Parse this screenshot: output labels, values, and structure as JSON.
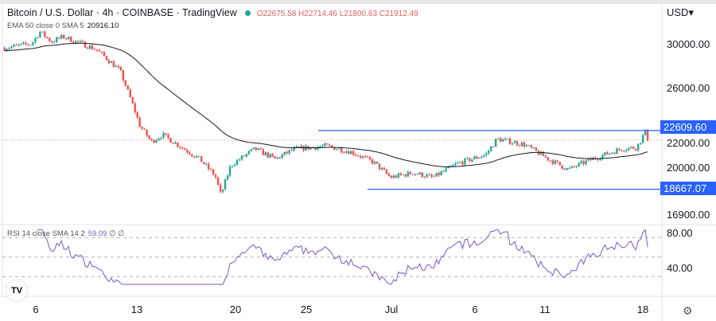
{
  "header": {
    "symbol": "Bitcoin / U.S. Dollar · 4h · COINBASE · TradingView",
    "ohlc": "O22675.58 H22714.46 L21800.63 C21912.49"
  },
  "indicators": {
    "ema_label": "EMA 50 close 0 SMA 5",
    "ema_value": "20916.10",
    "rsi_label": "RSI 14 close SMA 14 2",
    "rsi_value": "59.09",
    "rsi_extra": "∅ ∅"
  },
  "axis": {
    "currency": "USD",
    "price_labels": [
      "30000.00",
      "26000.00",
      "22000.00",
      "20000.00",
      "16900.00"
    ],
    "rsi_labels": [
      "80.00",
      "40.00"
    ],
    "time_labels": [
      "6",
      "13",
      "20",
      "25",
      "Jul",
      "6",
      "11",
      "18"
    ]
  },
  "levels": {
    "resistance": "22609.60",
    "support": "18667.07"
  },
  "colors": {
    "up": "#26a69a",
    "down": "#ef5350",
    "level": "#2962ff",
    "ema": "#131722",
    "rsi": "#7e57c2"
  },
  "chart_data": {
    "type": "candlestick",
    "timeframe": "4h",
    "waypoints_day_price": [
      [
        -2.2,
        29600
      ],
      [
        -0.3,
        30000
      ],
      [
        0.3,
        31200
      ],
      [
        1.1,
        30200
      ],
      [
        1.9,
        30700
      ],
      [
        4.2,
        29500
      ],
      [
        5.9,
        27500
      ],
      [
        7.3,
        23000
      ],
      [
        8.1,
        21800
      ],
      [
        8.9,
        22300
      ],
      [
        10.1,
        21500
      ],
      [
        11.5,
        20600
      ],
      [
        12.6,
        19500
      ],
      [
        13.0,
        18300
      ],
      [
        13.7,
        20200
      ],
      [
        15.4,
        21300
      ],
      [
        16.8,
        20600
      ],
      [
        18.2,
        21300
      ],
      [
        20.4,
        21500
      ],
      [
        22.1,
        21100
      ],
      [
        23.7,
        20400
      ],
      [
        24.9,
        19400
      ],
      [
        26.5,
        19700
      ],
      [
        27.9,
        19400
      ],
      [
        29.6,
        20300
      ],
      [
        31.6,
        20900
      ],
      [
        32.4,
        22000
      ],
      [
        34.3,
        21600
      ],
      [
        36.0,
        20600
      ],
      [
        37.4,
        19900
      ],
      [
        38.8,
        20500
      ],
      [
        41.1,
        21300
      ],
      [
        42.2,
        21400
      ],
      [
        42.8,
        22500
      ],
      [
        43.1,
        21912
      ]
    ],
    "ema_last": 20916.1,
    "rsi_last": 59.09,
    "price_axis_ticks": [
      30000,
      26000,
      22000,
      20000,
      16900
    ],
    "rsi_axis_ticks": [
      80,
      40
    ]
  }
}
